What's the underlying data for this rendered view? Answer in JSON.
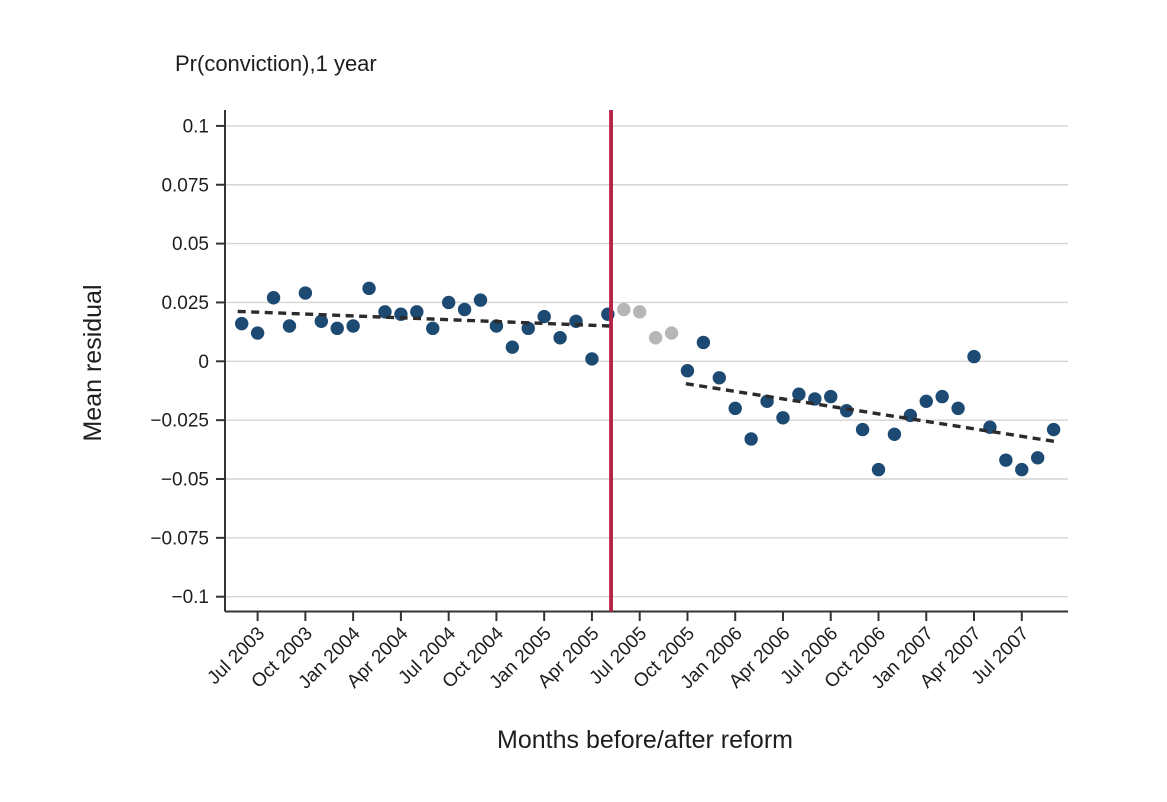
{
  "chart_data": {
    "type": "scatter",
    "title": "Pr(conviction),1 year",
    "xlabel": "Months before/after reform",
    "ylabel": "Mean residual",
    "ylim": [
      -0.107,
      0.107
    ],
    "grid": true,
    "legend": "none",
    "y_ticks": [
      {
        "value": 0.1,
        "label": "0.1"
      },
      {
        "value": 0.075,
        "label": "0.075"
      },
      {
        "value": 0.05,
        "label": "0.05"
      },
      {
        "value": 0.025,
        "label": "0.025"
      },
      {
        "value": 0,
        "label": "0"
      },
      {
        "value": -0.025,
        "label": "−0.025"
      },
      {
        "value": -0.05,
        "label": "−0.05"
      },
      {
        "value": -0.075,
        "label": "−0.075"
      },
      {
        "value": -0.1,
        "label": "−0.1"
      }
    ],
    "x_ticks": [
      {
        "month_index": 1,
        "label": "Jul 2003"
      },
      {
        "month_index": 4,
        "label": "Oct 2003"
      },
      {
        "month_index": 7,
        "label": "Jan 2004"
      },
      {
        "month_index": 10,
        "label": "Apr 2004"
      },
      {
        "month_index": 13,
        "label": "Jul 2004"
      },
      {
        "month_index": 16,
        "label": "Oct 2004"
      },
      {
        "month_index": 19,
        "label": "Jan 2005"
      },
      {
        "month_index": 22,
        "label": "Apr 2005"
      },
      {
        "month_index": 25,
        "label": "Jul 2005"
      },
      {
        "month_index": 28,
        "label": "Oct 2005"
      },
      {
        "month_index": 31,
        "label": "Jan 2006"
      },
      {
        "month_index": 34,
        "label": "Apr 2006"
      },
      {
        "month_index": 37,
        "label": "Jul 2006"
      },
      {
        "month_index": 40,
        "label": "Oct 2006"
      },
      {
        "month_index": 43,
        "label": "Jan 2007"
      },
      {
        "month_index": 46,
        "label": "Apr 2007"
      },
      {
        "month_index": 49,
        "label": "Jul 2007"
      }
    ],
    "series": [
      {
        "name": "pre_reform_residuals",
        "color": "#1d4a73",
        "marker": "circle",
        "m_start": 0,
        "months": [
          "Jun 2003",
          "Jul 2003",
          "Aug 2003",
          "Sep 2003",
          "Oct 2003",
          "Nov 2003",
          "Dec 2003",
          "Jan 2004",
          "Feb 2004",
          "Mar 2004",
          "Apr 2004",
          "May 2004",
          "Jun 2004",
          "Jul 2004",
          "Aug 2004",
          "Sep 2004",
          "Oct 2004",
          "Nov 2004",
          "Dec 2004",
          "Jan 2005",
          "Feb 2005",
          "Mar 2005",
          "Apr 2005",
          "May 2005"
        ],
        "values": [
          0.016,
          0.012,
          0.027,
          0.015,
          0.029,
          0.017,
          0.014,
          0.015,
          0.031,
          0.021,
          0.02,
          0.021,
          0.014,
          0.025,
          0.022,
          0.026,
          0.015,
          0.006,
          0.014,
          0.019,
          0.01,
          0.017,
          0.001,
          0.02
        ]
      },
      {
        "name": "transition_months_excluded",
        "color": "#b4b6b8",
        "marker": "circle",
        "m_start": 24,
        "months": [
          "Jun 2005",
          "Jul 2005",
          "Aug 2005",
          "Sep 2005"
        ],
        "values": [
          0.022,
          0.021,
          0.01,
          0.012
        ]
      },
      {
        "name": "post_reform_residuals",
        "color": "#1d4a73",
        "marker": "circle",
        "m_start": 28,
        "months": [
          "Oct 2005",
          "Nov 2005",
          "Dec 2005",
          "Jan 2006",
          "Feb 2006",
          "Mar 2006",
          "Apr 2006",
          "May 2006",
          "Jun 2006",
          "Jul 2006",
          "Aug 2006",
          "Sep 2006",
          "Oct 2006",
          "Nov 2006",
          "Dec 2006",
          "Jan 2007",
          "Feb 2007",
          "Mar 2007",
          "Apr 2007",
          "May 2007",
          "Jun 2007",
          "Jul 2007",
          "Aug 2007",
          "Sep 2007"
        ],
        "values": [
          -0.004,
          0.008,
          -0.007,
          -0.02,
          -0.033,
          -0.017,
          -0.024,
          -0.014,
          -0.016,
          -0.015,
          -0.021,
          -0.029,
          -0.046,
          -0.031,
          -0.023,
          -0.017,
          -0.015,
          -0.02,
          0.002,
          -0.028,
          -0.042,
          -0.046,
          -0.041,
          -0.029
        ]
      }
    ],
    "trend_lines": [
      {
        "name": "pre_reform_fit",
        "style": "dashed",
        "color": "#2b2b2b",
        "m_start": -0.25,
        "y_start": 0.0212,
        "m_end": 23.1,
        "y_end": 0.015
      },
      {
        "name": "post_reform_fit",
        "style": "dashed",
        "color": "#2b2b2b",
        "m_start": 27.9,
        "y_start": -0.0095,
        "m_end": 51.2,
        "y_end": -0.0342
      }
    ],
    "reform_line": {
      "orientation": "vertical",
      "m": 23.2,
      "color": "#b52045"
    }
  },
  "style_colors": {
    "grid": "#d4d4d4",
    "axis": "#333333",
    "point_blue": "#1d4a73",
    "point_gray": "#b4b6b8",
    "trend": "#2b2b2b",
    "reform_red": "#b52045"
  }
}
